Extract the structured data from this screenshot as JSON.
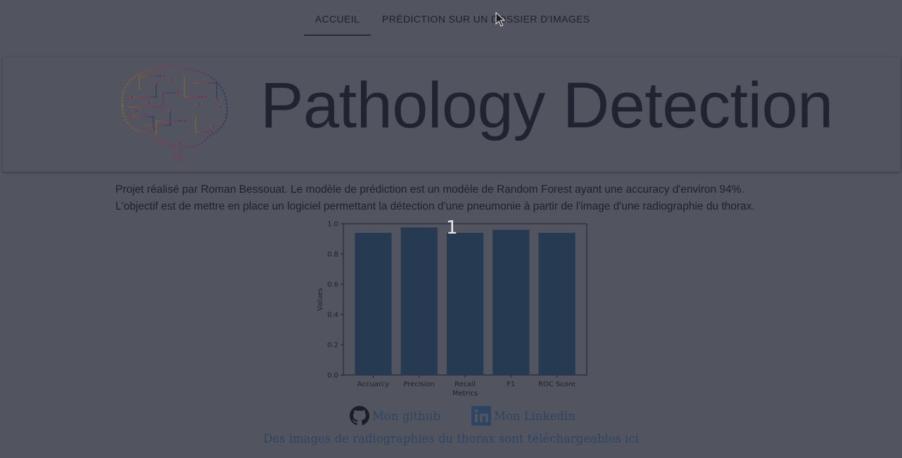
{
  "tabs": [
    {
      "label": "Accueil",
      "active": true
    },
    {
      "label": "Prédiction sur un dossier d'images",
      "active": false
    }
  ],
  "header": {
    "title": "Pathology Detection",
    "logo_icon": "circuit-brain-icon"
  },
  "description": {
    "line1": "Projet réalisé par Roman Bessouat. Le modèle de prédiction est un modèle de Random Forest ayant une accuracy d'environ 94%.",
    "line2": "L'objectif est de mettre en place un logiciel permettant la détection d'une pneumonie à partir de l'image d'une radiographie du thorax."
  },
  "counter": "1",
  "chart_data": {
    "type": "bar",
    "categories": [
      "Accuarcy",
      "Precision",
      "Recall",
      "F1",
      "ROC Score"
    ],
    "values": [
      0.94,
      0.975,
      0.94,
      0.96,
      0.94
    ],
    "title": "",
    "xlabel": "Metrics",
    "ylabel": "Values",
    "ylim": [
      0,
      1.0
    ],
    "yticks": [
      "0.0",
      "0.2",
      "0.4",
      "0.6",
      "0.8",
      "1.0"
    ],
    "bar_color": "#263a52",
    "grid": false
  },
  "links": {
    "github": {
      "label": "Mon github",
      "icon": "github-icon"
    },
    "linkedin": {
      "label": "Mon Linkedin",
      "icon": "linkedin-icon"
    },
    "images": {
      "label": "Des images de radiographies du thorax sont téléchargeables ici"
    }
  },
  "colors": {
    "background": "#52555f",
    "text": "#1c212b",
    "link": "#2e4463"
  }
}
